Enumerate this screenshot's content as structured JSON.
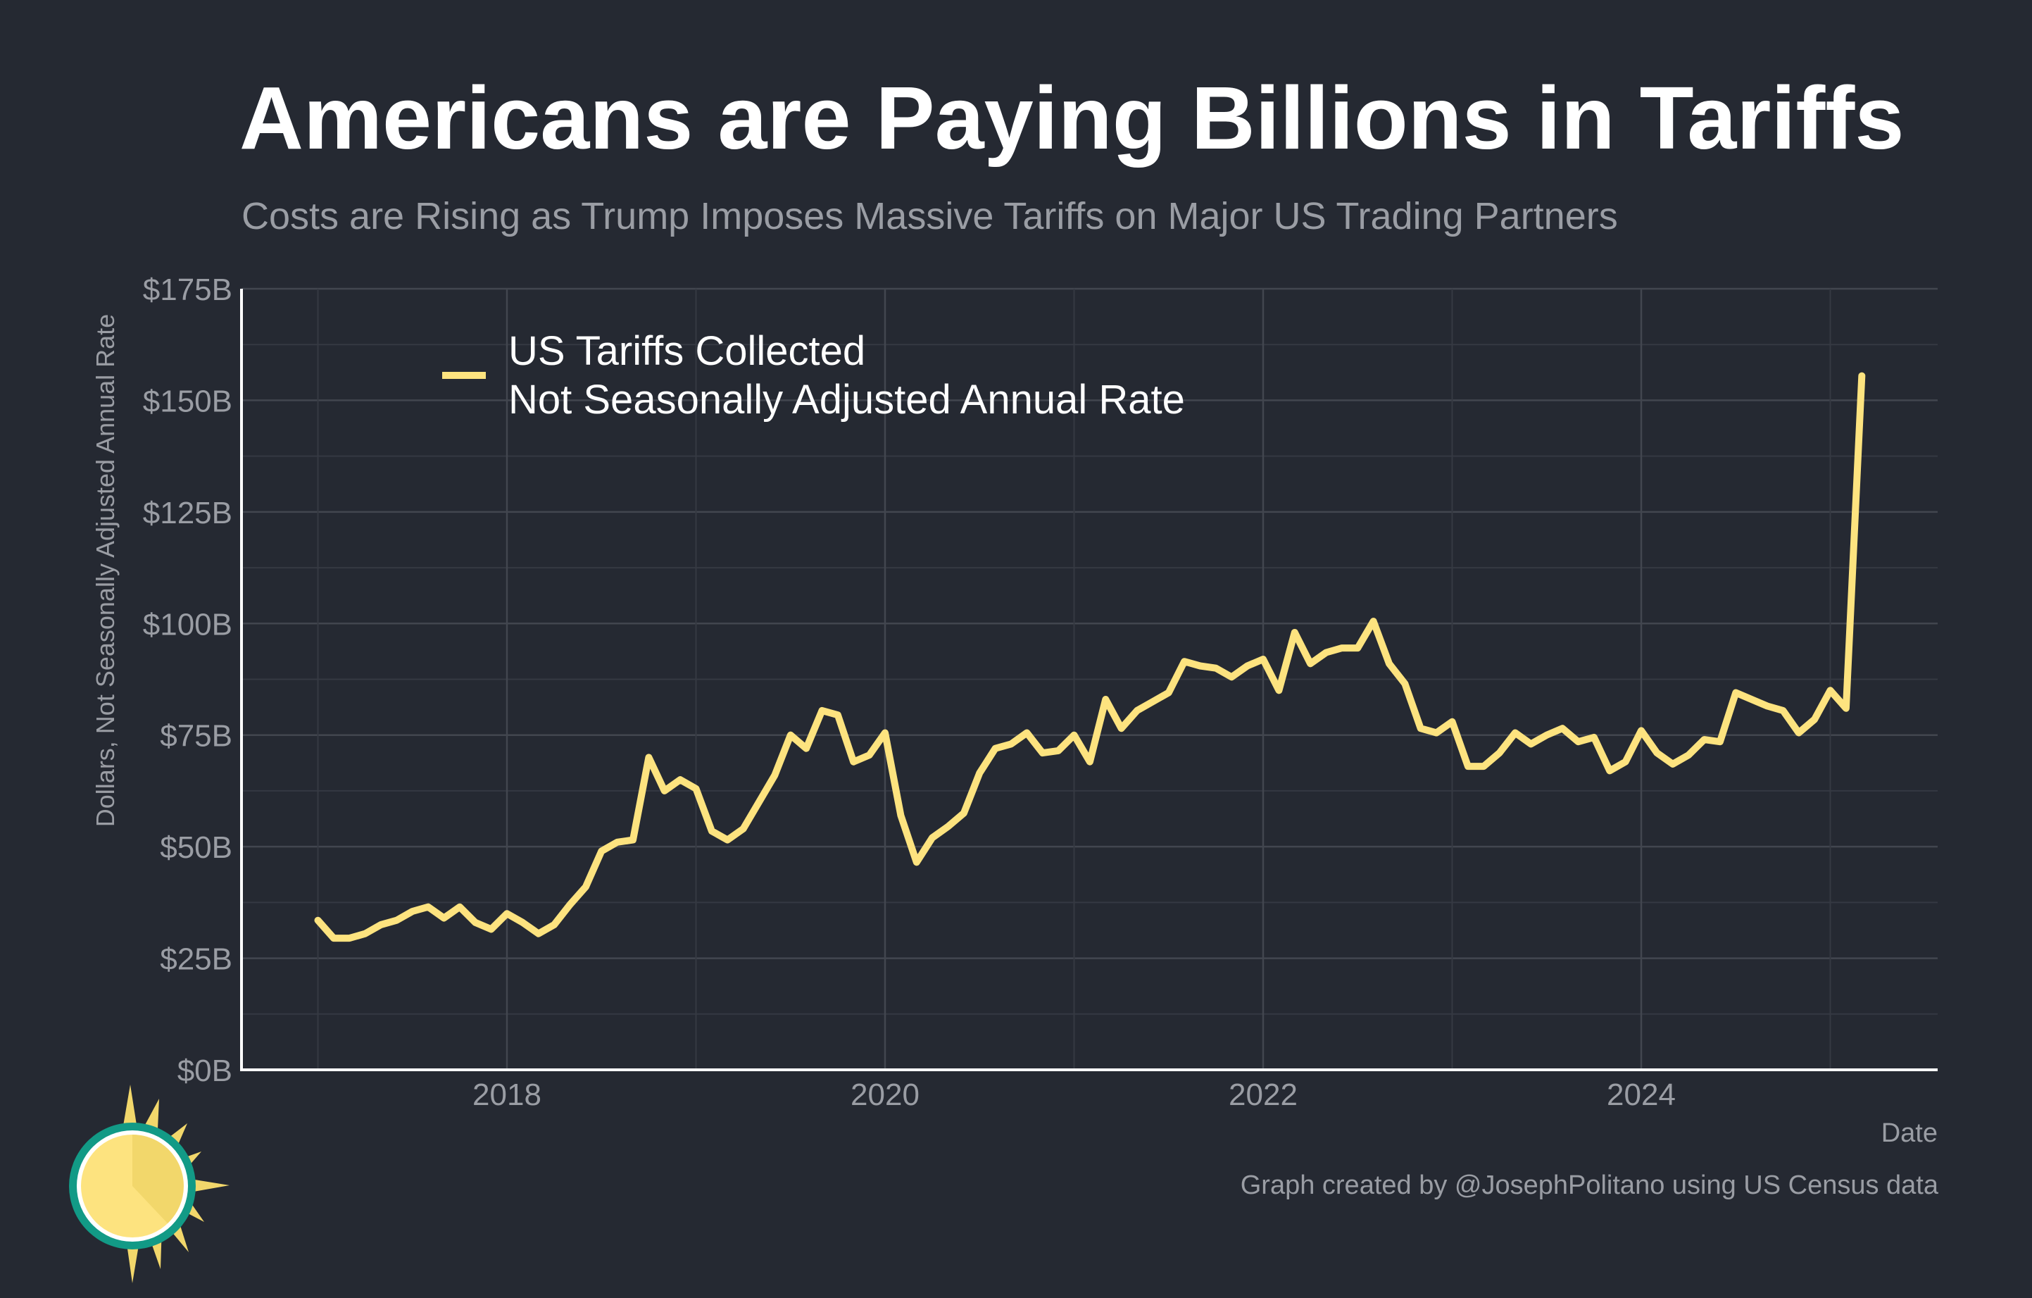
{
  "title": "Americans are Paying Billions in Tariffs",
  "subtitle": "Costs are Rising as Trump Imposes Massive Tariffs on Major US Trading Partners",
  "credit": "Graph created by @JosephPolitano using US Census data",
  "colors": {
    "background": "#252932",
    "line": "#fde37f",
    "grid": "#3c404a",
    "text": "#9a9da4"
  },
  "chart_data": {
    "type": "line",
    "xlabel": "Date",
    "ylabel": "Dollars, Not Seasonally Adjusted Annual Rate",
    "ylim": [
      0,
      175
    ],
    "y_ticks": [
      0,
      25,
      50,
      75,
      100,
      125,
      150,
      175
    ],
    "y_tick_labels": [
      "$0B",
      "$25B",
      "$50B",
      "$75B",
      "$100B",
      "$125B",
      "$150B",
      "$175B"
    ],
    "x_ticks": [
      2018,
      2020,
      2022,
      2024
    ],
    "x_tick_labels": [
      "2018",
      "2020",
      "2022",
      "2024"
    ],
    "legend": {
      "placement": "top-left",
      "line1": "US Tariffs Collected",
      "line2": "Not Seasonally Adjusted Annual Rate"
    },
    "grid": true,
    "series": [
      {
        "name": "US Tariffs Collected",
        "start": "2017-01",
        "frequency": "monthly",
        "values": [
          33.5,
          29.5,
          29.5,
          30.5,
          32.5,
          33.5,
          35.5,
          36.5,
          34.0,
          36.5,
          33.0,
          31.5,
          35.0,
          33.0,
          30.5,
          32.5,
          37.0,
          41.0,
          49.0,
          51.0,
          51.5,
          70.0,
          62.5,
          65.0,
          63.0,
          53.5,
          51.5,
          54.0,
          60.0,
          66.0,
          75.0,
          72.0,
          80.5,
          79.5,
          69.0,
          70.5,
          75.5,
          57.0,
          46.5,
          52.0,
          54.5,
          57.5,
          66.5,
          72.0,
          73.0,
          75.5,
          71.0,
          71.5,
          75.0,
          69.0,
          83.0,
          76.5,
          80.5,
          82.5,
          84.5,
          91.5,
          90.5,
          90.0,
          88.0,
          90.5,
          92.0,
          85.0,
          98.0,
          91.0,
          93.5,
          94.5,
          94.5,
          100.5,
          91.0,
          86.5,
          76.5,
          75.5,
          78.0,
          68.0,
          68.0,
          71.0,
          75.5,
          73.0,
          75.0,
          76.5,
          73.5,
          74.5,
          67.0,
          69.0,
          76.0,
          71.0,
          68.5,
          70.5,
          74.0,
          73.5,
          84.5,
          83.0,
          81.5,
          80.5,
          75.5,
          78.5,
          85.0,
          81.0,
          155.5
        ]
      }
    ]
  }
}
